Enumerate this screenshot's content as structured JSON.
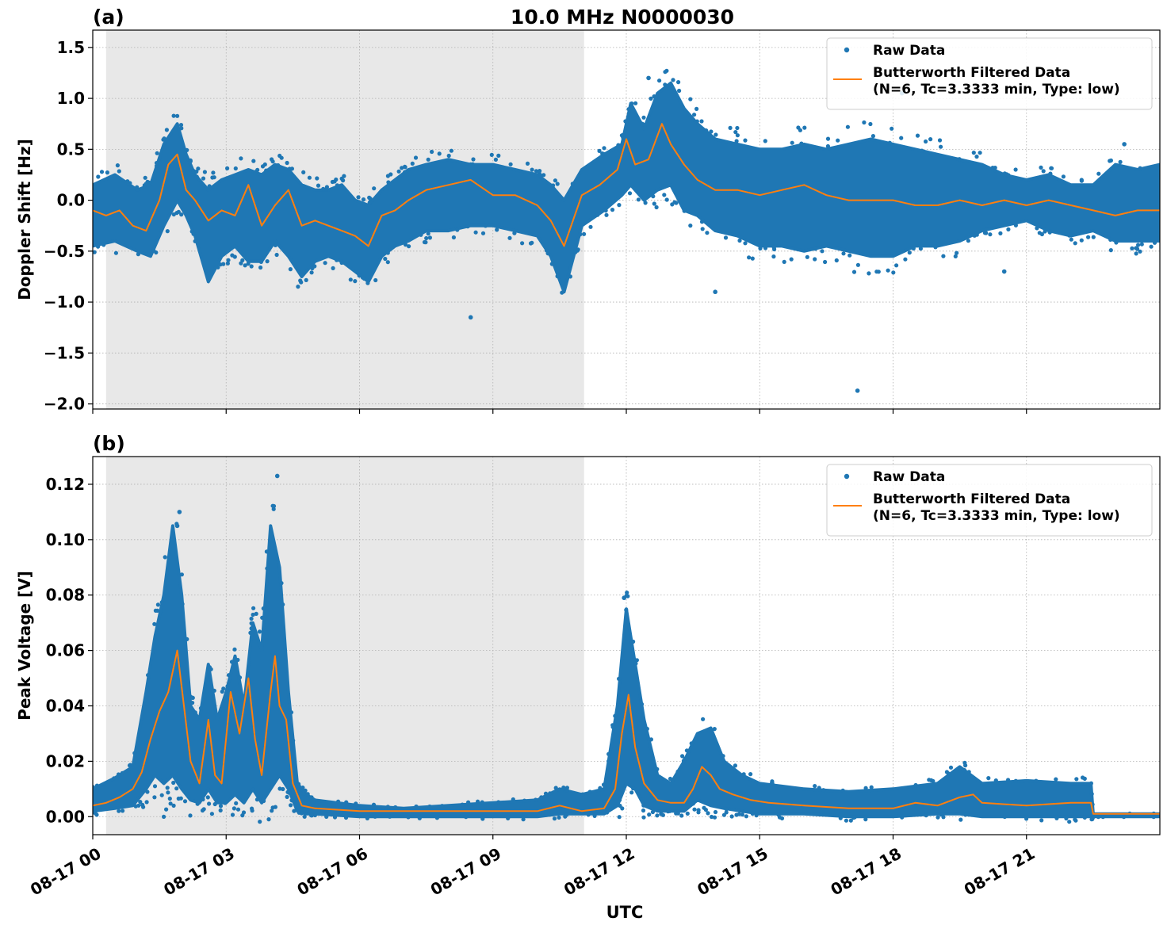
{
  "figure": {
    "title": "10.0 MHz N0000030",
    "xlabel": "UTC",
    "colors": {
      "raw": "#1f77b4",
      "filtered": "#ff7f0e",
      "shade": "#e8e8e8",
      "grid": "#b0b0b0"
    }
  },
  "chart_data": [
    {
      "type": "scatter",
      "panel_label": "(a)",
      "ylabel": "Doppler Shift [Hz]",
      "xlim": [
        0,
        24
      ],
      "ylim": [
        -2.05,
        1.67
      ],
      "yticks": [
        1.5,
        1.0,
        0.5,
        0.0,
        -0.5,
        -1.0,
        -1.5,
        -2.0
      ],
      "ytick_labels": [
        "1.5",
        "1.0",
        "0.5",
        "0.0",
        "−0.5",
        "−1.0",
        "−1.5",
        "−2.0"
      ],
      "xticks": [
        0,
        3,
        6,
        9,
        12,
        15,
        18,
        21
      ],
      "xtick_labels": [
        "08-17 00",
        "08-17 03",
        "08-17 06",
        "08-17 09",
        "08-17 12",
        "08-17 15",
        "08-17 18",
        "08-17 21"
      ],
      "shaded_x": [
        0.3,
        11.05
      ],
      "grid": true,
      "legend_position": "upper right",
      "legend": [
        "Raw Data",
        "Butterworth Filtered Data",
        "(N=6, Tc=3.3333 min, Type: low)"
      ],
      "series": [
        {
          "name": "Raw Data",
          "band": {
            "x": [
              0,
              0.5,
              1.0,
              1.3,
              1.6,
              1.9,
              2.1,
              2.3,
              2.6,
              2.9,
              3.2,
              3.5,
              3.8,
              4.1,
              4.4,
              4.7,
              5.0,
              5.3,
              5.6,
              5.9,
              6.2,
              6.5,
              6.8,
              7.1,
              7.5,
              8.0,
              8.5,
              9.0,
              9.5,
              10.0,
              10.3,
              10.6,
              11.0,
              11.5,
              11.9,
              12.1,
              12.4,
              12.7,
              13.0,
              13.3,
              13.6,
              14.0,
              14.5,
              15.0,
              15.5,
              16.0,
              16.5,
              17.0,
              17.5,
              18.0,
              18.5,
              19.0,
              19.5,
              20.0,
              20.5,
              21.0,
              21.5,
              22.0,
              22.5,
              23.0,
              23.5,
              24.0
            ],
            "y_low": [
              -0.45,
              -0.4,
              -0.5,
              -0.55,
              -0.25,
              0.0,
              -0.15,
              -0.35,
              -0.8,
              -0.55,
              -0.45,
              -0.6,
              -0.6,
              -0.4,
              -0.55,
              -0.75,
              -0.6,
              -0.55,
              -0.6,
              -0.7,
              -0.8,
              -0.55,
              -0.45,
              -0.4,
              -0.3,
              -0.3,
              -0.25,
              -0.25,
              -0.3,
              -0.35,
              -0.55,
              -0.9,
              -0.25,
              -0.1,
              0.05,
              0.15,
              0.0,
              0.1,
              0.15,
              -0.1,
              -0.15,
              -0.3,
              -0.35,
              -0.45,
              -0.45,
              -0.5,
              -0.45,
              -0.5,
              -0.55,
              -0.55,
              -0.45,
              -0.45,
              -0.4,
              -0.3,
              -0.25,
              -0.2,
              -0.3,
              -0.35,
              -0.3,
              -0.4,
              -0.4,
              -0.4
            ],
            "y_high": [
              0.15,
              0.25,
              0.1,
              0.15,
              0.55,
              0.75,
              0.45,
              0.25,
              0.1,
              0.2,
              0.25,
              0.3,
              0.25,
              0.35,
              0.3,
              0.15,
              0.1,
              0.1,
              0.15,
              0.0,
              -0.05,
              0.1,
              0.2,
              0.3,
              0.35,
              0.4,
              0.35,
              0.35,
              0.3,
              0.25,
              0.15,
              0.0,
              0.3,
              0.45,
              0.55,
              0.95,
              0.7,
              1.05,
              1.15,
              0.9,
              0.75,
              0.6,
              0.55,
              0.5,
              0.5,
              0.55,
              0.5,
              0.55,
              0.6,
              0.55,
              0.5,
              0.45,
              0.4,
              0.35,
              0.25,
              0.2,
              0.25,
              0.15,
              0.15,
              0.35,
              0.3,
              0.35
            ]
          },
          "outliers": {
            "x": [
              17.2,
              14.0,
              20.5,
              23.2,
              8.5,
              12.5,
              18.2
            ],
            "y": [
              -1.87,
              -0.9,
              -0.7,
              0.55,
              -1.15,
              1.2,
              1.05
            ]
          }
        },
        {
          "name": "Butterworth Filtered Data",
          "x": [
            0,
            0.3,
            0.6,
            0.9,
            1.2,
            1.5,
            1.7,
            1.9,
            2.1,
            2.3,
            2.6,
            2.9,
            3.2,
            3.5,
            3.8,
            4.1,
            4.4,
            4.7,
            5.0,
            5.3,
            5.6,
            5.9,
            6.2,
            6.5,
            6.8,
            7.1,
            7.5,
            8.0,
            8.5,
            9.0,
            9.5,
            10.0,
            10.3,
            10.6,
            11.0,
            11.4,
            11.8,
            12.0,
            12.2,
            12.5,
            12.8,
            13.0,
            13.3,
            13.6,
            14.0,
            14.5,
            15.0,
            15.5,
            16.0,
            16.5,
            17.0,
            17.5,
            18.0,
            18.5,
            19.0,
            19.5,
            20.0,
            20.5,
            21.0,
            21.5,
            22.0,
            22.5,
            23.0,
            23.5,
            24.0
          ],
          "y": [
            -0.1,
            -0.15,
            -0.1,
            -0.25,
            -0.3,
            0.0,
            0.35,
            0.45,
            0.1,
            0.0,
            -0.2,
            -0.1,
            -0.15,
            0.15,
            -0.25,
            -0.05,
            0.1,
            -0.25,
            -0.2,
            -0.25,
            -0.3,
            -0.35,
            -0.45,
            -0.15,
            -0.1,
            0.0,
            0.1,
            0.15,
            0.2,
            0.05,
            0.05,
            -0.05,
            -0.2,
            -0.45,
            0.05,
            0.15,
            0.3,
            0.6,
            0.35,
            0.4,
            0.75,
            0.55,
            0.35,
            0.2,
            0.1,
            0.1,
            0.05,
            0.1,
            0.15,
            0.05,
            0.0,
            0.0,
            0.0,
            -0.05,
            -0.05,
            0.0,
            -0.05,
            0.0,
            -0.05,
            0.0,
            -0.05,
            -0.1,
            -0.15,
            -0.1,
            -0.1
          ]
        }
      ]
    },
    {
      "type": "scatter",
      "panel_label": "(b)",
      "ylabel": "Peak Voltage [V]",
      "xlim": [
        0,
        24
      ],
      "ylim": [
        -0.0065,
        0.13
      ],
      "yticks": [
        0.0,
        0.02,
        0.04,
        0.06,
        0.08,
        0.1,
        0.12
      ],
      "ytick_labels": [
        "0.00",
        "0.02",
        "0.04",
        "0.06",
        "0.08",
        "0.10",
        "0.12"
      ],
      "xticks": [
        0,
        3,
        6,
        9,
        12,
        15,
        18,
        21
      ],
      "xtick_labels": [
        "08-17 00",
        "08-17 03",
        "08-17 06",
        "08-17 09",
        "08-17 12",
        "08-17 15",
        "08-17 18",
        "08-17 21"
      ],
      "shaded_x": [
        0.3,
        11.05
      ],
      "grid": true,
      "legend_position": "upper right",
      "legend": [
        "Raw Data",
        "Butterworth Filtered Data",
        "(N=6, Tc=3.3333 min, Type: low)"
      ],
      "series": [
        {
          "name": "Raw Data",
          "band": {
            "x": [
              0,
              0.5,
              0.9,
              1.2,
              1.4,
              1.6,
              1.8,
              2.0,
              2.2,
              2.4,
              2.6,
              2.8,
              3.0,
              3.2,
              3.4,
              3.6,
              3.8,
              4.0,
              4.2,
              4.4,
              4.6,
              4.8,
              5.0,
              6.0,
              7.0,
              8.0,
              9.0,
              10.0,
              10.5,
              11.0,
              11.5,
              11.8,
              12.0,
              12.2,
              12.4,
              12.7,
              13.0,
              13.3,
              13.6,
              13.9,
              14.2,
              14.6,
              15.0,
              16.0,
              17.0,
              18.0,
              19.0,
              19.5,
              20.0,
              21.0,
              22.0,
              22.45,
              22.5,
              24.0
            ],
            "y_low": [
              0.002,
              0.003,
              0.004,
              0.01,
              0.015,
              0.012,
              0.015,
              0.01,
              0.006,
              0.005,
              0.01,
              0.005,
              0.005,
              0.008,
              0.005,
              0.01,
              0.005,
              0.01,
              0.015,
              0.01,
              0.002,
              0.001,
              0.001,
              0.0,
              0.0,
              0.0,
              0.0,
              0.0,
              0.001,
              0.001,
              0.001,
              0.004,
              0.012,
              0.01,
              0.004,
              0.002,
              0.002,
              0.002,
              0.006,
              0.004,
              0.003,
              0.002,
              0.001,
              0.001,
              0.0,
              0.0,
              0.001,
              0.001,
              0.0,
              0.0,
              0.0,
              0.0,
              0.0,
              0.0
            ],
            "y_high": [
              0.01,
              0.014,
              0.018,
              0.045,
              0.065,
              0.08,
              0.105,
              0.08,
              0.04,
              0.035,
              0.055,
              0.035,
              0.045,
              0.058,
              0.04,
              0.07,
              0.06,
              0.105,
              0.09,
              0.045,
              0.012,
              0.008,
              0.006,
              0.004,
              0.003,
              0.004,
              0.005,
              0.006,
              0.01,
              0.008,
              0.01,
              0.04,
              0.075,
              0.055,
              0.035,
              0.015,
              0.012,
              0.02,
              0.03,
              0.032,
              0.02,
              0.015,
              0.012,
              0.01,
              0.009,
              0.01,
              0.012,
              0.018,
              0.012,
              0.013,
              0.012,
              0.012,
              0.001,
              0.001
            ]
          },
          "outliers": {
            "x": [
              4.15,
              1.95,
              1.9,
              11.95
            ],
            "y": [
              0.123,
              0.11,
              0.105,
              0.079
            ]
          }
        },
        {
          "name": "Butterworth Filtered Data",
          "x": [
            0,
            0.3,
            0.6,
            0.9,
            1.1,
            1.3,
            1.5,
            1.7,
            1.9,
            2.05,
            2.2,
            2.4,
            2.6,
            2.75,
            2.9,
            3.1,
            3.3,
            3.5,
            3.65,
            3.8,
            4.0,
            4.1,
            4.2,
            4.35,
            4.5,
            4.7,
            5.0,
            6.0,
            7.0,
            8.0,
            9.0,
            10.0,
            10.5,
            11.0,
            11.5,
            11.75,
            11.9,
            12.05,
            12.2,
            12.4,
            12.7,
            13.0,
            13.3,
            13.5,
            13.7,
            13.9,
            14.1,
            14.4,
            14.8,
            15.2,
            16.0,
            17.0,
            18.0,
            18.5,
            19.0,
            19.5,
            19.8,
            20.0,
            21.0,
            22.0,
            22.4,
            22.45,
            22.5,
            24.0
          ],
          "y": [
            0.004,
            0.005,
            0.007,
            0.01,
            0.016,
            0.028,
            0.038,
            0.045,
            0.06,
            0.04,
            0.02,
            0.012,
            0.035,
            0.015,
            0.012,
            0.045,
            0.03,
            0.05,
            0.028,
            0.015,
            0.045,
            0.058,
            0.04,
            0.035,
            0.012,
            0.004,
            0.003,
            0.002,
            0.002,
            0.002,
            0.002,
            0.002,
            0.004,
            0.002,
            0.003,
            0.01,
            0.03,
            0.044,
            0.025,
            0.012,
            0.006,
            0.005,
            0.005,
            0.01,
            0.018,
            0.015,
            0.01,
            0.008,
            0.006,
            0.005,
            0.004,
            0.003,
            0.003,
            0.005,
            0.004,
            0.007,
            0.008,
            0.005,
            0.004,
            0.005,
            0.005,
            0.005,
            0.001,
            0.001
          ]
        }
      ]
    }
  ]
}
